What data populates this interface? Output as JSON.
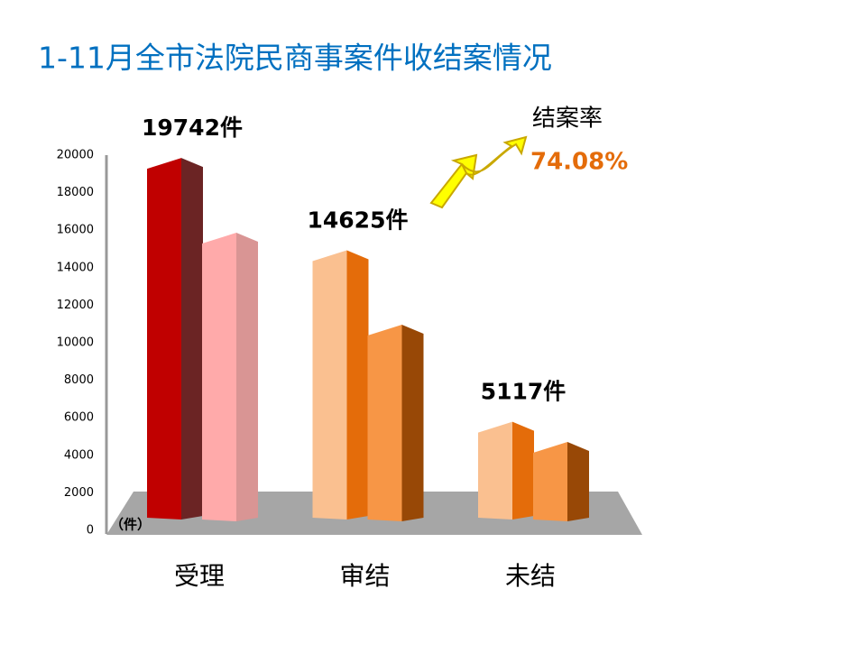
{
  "chart_data": {
    "type": "bar",
    "title": "1-11月全市法院民商事案件收结案情况",
    "y_unit_label": "（件）",
    "categories": [
      "受理",
      "审结",
      "未结"
    ],
    "series": [
      {
        "values": [
          19742,
          14625,
          5117
        ],
        "value_labels": [
          "19742件",
          "14625件",
          "5117件"
        ],
        "colors": [
          "#c00000",
          "#fac090",
          "#fac090"
        ],
        "side_colors": [
          "#6b2424",
          "#e46c0a",
          "#e46c0a"
        ]
      },
      {
        "values": [
          15600,
          10500,
          4000
        ],
        "colors": [
          "#ffaaaa",
          "#f79646",
          "#f79646"
        ],
        "side_colors": [
          "#d99594",
          "#984806",
          "#984806"
        ]
      }
    ],
    "ylim": [
      0,
      20000
    ],
    "yticks": [
      0,
      2000,
      4000,
      6000,
      8000,
      10000,
      12000,
      14000,
      16000,
      18000,
      20000
    ],
    "annotation": {
      "label": "结案率",
      "value": 74.08,
      "value_label": "74.08%"
    }
  }
}
